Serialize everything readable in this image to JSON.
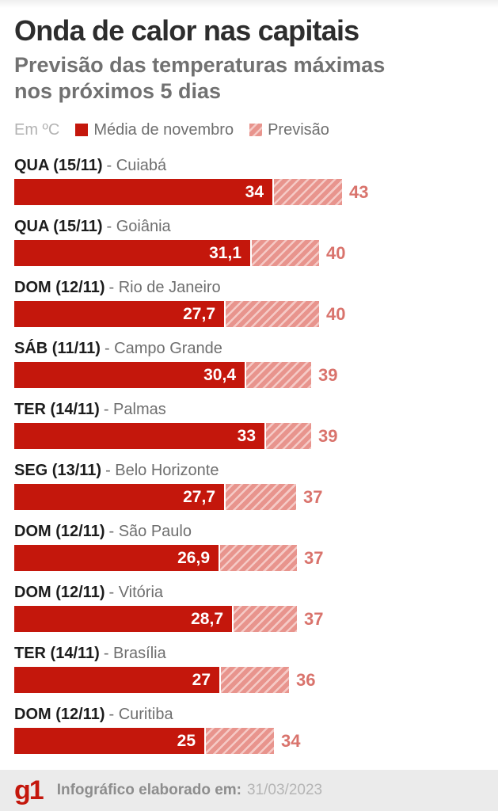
{
  "header": {
    "title": "Onda de calor nas capitais",
    "subtitle_line1": "Previsão das temperaturas máximas",
    "subtitle_line2": "nos próximos 5 dias"
  },
  "legend": {
    "unit_label": "Em ºC",
    "items": [
      {
        "label": "Média de novembro",
        "swatch": "solid-red-square"
      },
      {
        "label": "Previsão",
        "swatch": "hatched-pink-square"
      }
    ]
  },
  "chart_data": {
    "type": "bar",
    "orientation": "horizontal",
    "unit": "ºC",
    "title": "Onda de calor nas capitais",
    "subtitle": "Previsão das temperaturas máximas nos próximos 5 dias",
    "xlim": [
      0,
      43
    ],
    "grid": false,
    "legend_position": "top",
    "label_separator": "-",
    "series": [
      {
        "name": "Média de novembro",
        "style": "solid"
      },
      {
        "name": "Previsão",
        "style": "hatched"
      }
    ],
    "rows": [
      {
        "day": "QUA (15/11)",
        "city": "Cuiabá",
        "avg": 34,
        "avg_label": "34",
        "forecast": 43,
        "forecast_label": "43"
      },
      {
        "day": "QUA (15/11)",
        "city": "Goiânia",
        "avg": 31.1,
        "avg_label": "31,1",
        "forecast": 40,
        "forecast_label": "40"
      },
      {
        "day": "DOM (12/11)",
        "city": "Rio de Janeiro",
        "avg": 27.7,
        "avg_label": "27,7",
        "forecast": 40,
        "forecast_label": "40"
      },
      {
        "day": "SÁB (11/11)",
        "city": "Campo Grande",
        "avg": 30.4,
        "avg_label": "30,4",
        "forecast": 39,
        "forecast_label": "39"
      },
      {
        "day": "TER (14/11)",
        "city": "Palmas",
        "avg": 33,
        "avg_label": "33",
        "forecast": 39,
        "forecast_label": "39"
      },
      {
        "day": "SEG (13/11)",
        "city": "Belo Horizonte",
        "avg": 27.7,
        "avg_label": "27,7",
        "forecast": 37,
        "forecast_label": "37"
      },
      {
        "day": "DOM (12/11)",
        "city": "São Paulo",
        "avg": 26.9,
        "avg_label": "26,9",
        "forecast": 37,
        "forecast_label": "37"
      },
      {
        "day": "DOM (12/11)",
        "city": "Vitória",
        "avg": 28.7,
        "avg_label": "28,7",
        "forecast": 37,
        "forecast_label": "37"
      },
      {
        "day": "TER (14/11)",
        "city": "Brasília",
        "avg": 27,
        "avg_label": "27",
        "forecast": 36,
        "forecast_label": "36"
      },
      {
        "day": "DOM (12/11)",
        "city": "Curitiba",
        "avg": 25,
        "avg_label": "25",
        "forecast": 34,
        "forecast_label": "34"
      }
    ]
  },
  "footer": {
    "logo": "g1",
    "label": "Infográfico elaborado em:",
    "date": "31/03/2023"
  },
  "colors": {
    "avg_bar": "#c4170c",
    "forecast_base": "#e8948d",
    "forecast_stripe": "#f5cac6",
    "forecast_text": "#d9736c",
    "title_text": "#2d2d2d",
    "subtitle_text": "#717171",
    "day_text": "#1c1c1c",
    "muted_text": "#6f6f6f",
    "unit_text": "#b3b3b3",
    "bar_value_text": "#ffffff",
    "footer_bg": "#ebebeb",
    "footer_label_text": "#8d8d8d",
    "footer_date_text": "#b5b5b5",
    "logo_red": "#c4170c"
  }
}
